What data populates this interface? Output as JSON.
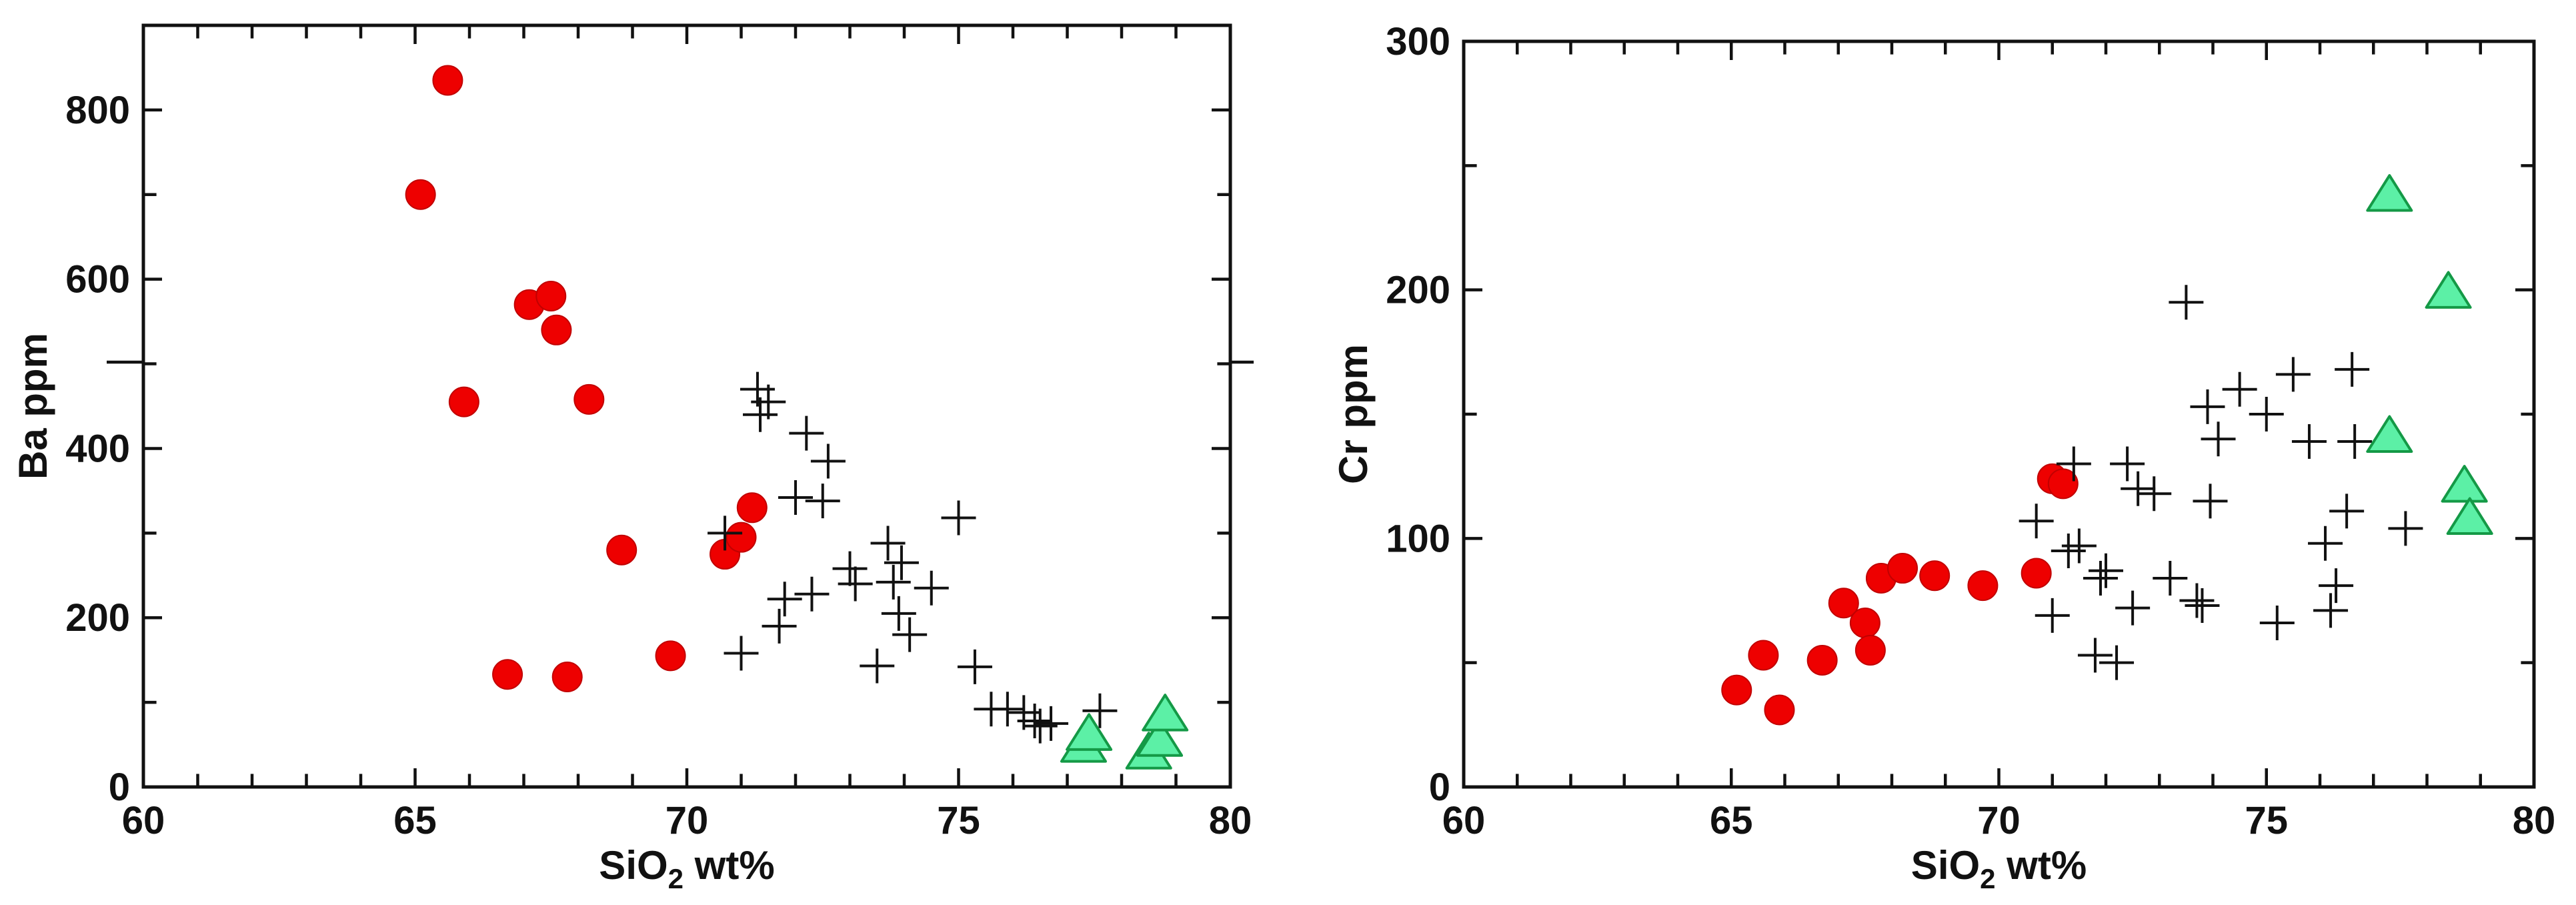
{
  "colors": {
    "circle": "#ee0000",
    "plus": "#111111",
    "triangle": "#5cf0a6",
    "triangle_edge": "#149946",
    "axis": "#111111"
  },
  "chart_data": [
    {
      "type": "scatter",
      "xlabel_main": "SiO",
      "xlabel_sub": "2",
      "xlabel_rest": " wt%",
      "ylabel": "Ba ppm",
      "xlim": [
        60,
        80
      ],
      "ylim": [
        0,
        900
      ],
      "xticks": [
        60,
        65,
        70,
        75,
        80
      ],
      "yticks": [
        0,
        200,
        400,
        600,
        800
      ],
      "grid": false,
      "series": [
        {
          "marker": "circle",
          "points": [
            [
              65.1,
              700
            ],
            [
              65.6,
              835
            ],
            [
              65.9,
              455
            ],
            [
              66.7,
              133
            ],
            [
              67.1,
              570
            ],
            [
              67.5,
              580
            ],
            [
              67.6,
              540
            ],
            [
              67.8,
              130
            ],
            [
              68.2,
              458
            ],
            [
              68.8,
              280
            ],
            [
              69.7,
              155
            ],
            [
              70.7,
              275
            ],
            [
              71.0,
              295
            ],
            [
              71.2,
              330
            ]
          ]
        },
        {
          "marker": "plus",
          "points": [
            [
              70.7,
              300
            ],
            [
              71.0,
              158
            ],
            [
              71.3,
              470
            ],
            [
              71.35,
              440
            ],
            [
              71.5,
              455
            ],
            [
              71.7,
              190
            ],
            [
              71.8,
              222
            ],
            [
              72.0,
              342
            ],
            [
              72.2,
              418
            ],
            [
              72.3,
              228
            ],
            [
              72.5,
              338
            ],
            [
              72.6,
              385
            ],
            [
              73.0,
              258
            ],
            [
              73.1,
              240
            ],
            [
              73.5,
              143
            ],
            [
              73.7,
              288
            ],
            [
              73.8,
              242
            ],
            [
              73.9,
              205
            ],
            [
              73.95,
              265
            ],
            [
              74.1,
              180
            ],
            [
              74.5,
              235
            ],
            [
              75.0,
              318
            ],
            [
              75.3,
              142
            ],
            [
              75.6,
              92
            ],
            [
              75.9,
              92
            ],
            [
              76.2,
              88
            ],
            [
              76.4,
              78
            ],
            [
              76.5,
              72
            ],
            [
              76.7,
              75
            ],
            [
              77.6,
              90
            ]
          ]
        },
        {
          "marker": "triangle",
          "points": [
            [
              77.3,
              48
            ],
            [
              77.4,
              62
            ],
            [
              78.5,
              40
            ],
            [
              78.7,
              55
            ],
            [
              78.8,
              85
            ]
          ]
        }
      ]
    },
    {
      "type": "scatter",
      "xlabel_main": "SiO",
      "xlabel_sub": "2",
      "xlabel_rest": " wt%",
      "ylabel": "Cr ppm",
      "xlim": [
        60,
        80
      ],
      "ylim": [
        0,
        300
      ],
      "xticks": [
        60,
        65,
        70,
        75,
        80
      ],
      "yticks": [
        0,
        100,
        200,
        300
      ],
      "grid": false,
      "series": [
        {
          "marker": "circle",
          "points": [
            [
              65.1,
              39
            ],
            [
              65.6,
              53
            ],
            [
              65.9,
              31
            ],
            [
              66.7,
              51
            ],
            [
              67.1,
              74
            ],
            [
              67.5,
              66
            ],
            [
              67.6,
              55
            ],
            [
              67.8,
              84
            ],
            [
              68.2,
              88
            ],
            [
              68.8,
              85
            ],
            [
              69.7,
              81
            ],
            [
              70.7,
              86
            ],
            [
              71.0,
              124
            ],
            [
              71.2,
              122
            ]
          ]
        },
        {
          "marker": "plus",
          "points": [
            [
              70.7,
              107
            ],
            [
              71.0,
              69
            ],
            [
              71.3,
              95
            ],
            [
              71.4,
              130
            ],
            [
              71.5,
              97
            ],
            [
              71.8,
              53
            ],
            [
              71.9,
              84
            ],
            [
              72.0,
              87
            ],
            [
              72.2,
              50
            ],
            [
              72.4,
              130
            ],
            [
              72.5,
              72
            ],
            [
              72.6,
              120
            ],
            [
              72.9,
              118
            ],
            [
              73.2,
              84
            ],
            [
              73.5,
              195
            ],
            [
              73.7,
              75
            ],
            [
              73.8,
              73
            ],
            [
              73.9,
              153
            ],
            [
              73.95,
              115
            ],
            [
              74.1,
              140
            ],
            [
              74.5,
              160
            ],
            [
              75.0,
              150
            ],
            [
              75.2,
              66
            ],
            [
              75.5,
              166
            ],
            [
              75.8,
              139
            ],
            [
              76.1,
              98
            ],
            [
              76.2,
              71
            ],
            [
              76.3,
              81
            ],
            [
              76.5,
              111
            ],
            [
              76.6,
              168
            ],
            [
              76.65,
              139
            ],
            [
              77.6,
              104
            ]
          ]
        },
        {
          "marker": "triangle",
          "points": [
            [
              77.3,
              238
            ],
            [
              77.3,
              141
            ],
            [
              78.4,
              199
            ],
            [
              78.7,
              121
            ],
            [
              78.8,
              108
            ]
          ]
        }
      ]
    }
  ]
}
